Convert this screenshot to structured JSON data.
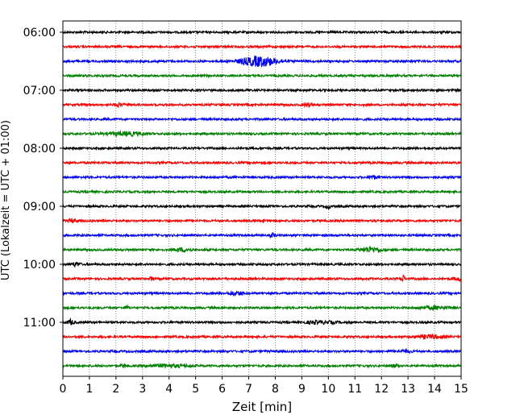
{
  "chart_data": {
    "type": "line",
    "title": "",
    "xlabel": "Zeit  [min]",
    "ylabel": "UTC (Lokalzeit = UTC + 01:00)",
    "xlim": [
      0,
      15
    ],
    "x_ticks": [
      0,
      1,
      2,
      3,
      4,
      5,
      6,
      7,
      8,
      9,
      10,
      11,
      12,
      13,
      14,
      15
    ],
    "x_tick_labels": [
      "0",
      "1",
      "2",
      "3",
      "4",
      "5",
      "6",
      "7",
      "8",
      "9",
      "10",
      "11",
      "12",
      "13",
      "14",
      "15"
    ],
    "y_tick_labels": [
      "06:00",
      "07:00",
      "08:00",
      "09:00",
      "10:00",
      "11:00"
    ],
    "x_grid": true,
    "trace_colors": [
      "#000000",
      "#ff0000",
      "#0000ff",
      "#008000"
    ],
    "traces": [
      {
        "start": "06:00",
        "color": "#000000",
        "amplitude": 1,
        "events": []
      },
      {
        "start": "06:15",
        "color": "#ff0000",
        "amplitude": 1,
        "events": []
      },
      {
        "start": "06:30",
        "color": "#0000ff",
        "amplitude": 1,
        "events": [
          {
            "t": 7.4,
            "width": 1.4,
            "amp": 6
          }
        ]
      },
      {
        "start": "06:45",
        "color": "#008000",
        "amplitude": 1,
        "events": []
      },
      {
        "start": "07:00",
        "color": "#000000",
        "amplitude": 1,
        "events": []
      },
      {
        "start": "07:15",
        "color": "#ff0000",
        "amplitude": 1,
        "events": [
          {
            "t": 2.1,
            "width": 0.3,
            "amp": 2
          },
          {
            "t": 9.2,
            "width": 0.3,
            "amp": 2
          }
        ]
      },
      {
        "start": "07:30",
        "color": "#0000ff",
        "amplitude": 1,
        "events": []
      },
      {
        "start": "07:45",
        "color": "#008000",
        "amplitude": 1,
        "events": [
          {
            "t": 2.4,
            "width": 1.4,
            "amp": 2
          }
        ]
      },
      {
        "start": "08:00",
        "color": "#000000",
        "amplitude": 1,
        "events": []
      },
      {
        "start": "08:15",
        "color": "#ff0000",
        "amplitude": 1,
        "events": []
      },
      {
        "start": "08:30",
        "color": "#0000ff",
        "amplitude": 1,
        "events": [
          {
            "t": 11.7,
            "width": 0.3,
            "amp": 2
          }
        ]
      },
      {
        "start": "08:45",
        "color": "#008000",
        "amplitude": 1,
        "events": []
      },
      {
        "start": "09:00",
        "color": "#000000",
        "amplitude": 1,
        "events": [
          {
            "t": 10.0,
            "width": 0.2,
            "amp": 2
          }
        ]
      },
      {
        "start": "09:15",
        "color": "#ff0000",
        "amplitude": 1,
        "events": [
          {
            "t": 0.4,
            "width": 0.3,
            "amp": 2
          },
          {
            "t": 7.5,
            "width": 0.1,
            "amp": 3
          }
        ]
      },
      {
        "start": "09:30",
        "color": "#0000ff",
        "amplitude": 1,
        "events": [
          {
            "t": 7.9,
            "width": 0.15,
            "amp": 3
          }
        ]
      },
      {
        "start": "09:45",
        "color": "#008000",
        "amplitude": 1,
        "events": [
          {
            "t": 4.5,
            "width": 0.6,
            "amp": 2
          },
          {
            "t": 11.6,
            "width": 0.8,
            "amp": 3
          }
        ]
      },
      {
        "start": "10:00",
        "color": "#000000",
        "amplitude": 1,
        "events": [
          {
            "t": 0.5,
            "width": 0.3,
            "amp": 2
          }
        ]
      },
      {
        "start": "10:15",
        "color": "#ff0000",
        "amplitude": 1,
        "events": [
          {
            "t": 3.3,
            "width": 0.15,
            "amp": 2
          },
          {
            "t": 12.8,
            "width": 0.12,
            "amp": 5
          },
          {
            "t": 14.9,
            "width": 0.3,
            "amp": 2
          }
        ]
      },
      {
        "start": "10:30",
        "color": "#0000ff",
        "amplitude": 1,
        "events": [
          {
            "t": 6.5,
            "width": 0.6,
            "amp": 2
          }
        ]
      },
      {
        "start": "10:45",
        "color": "#008000",
        "amplitude": 1,
        "events": [
          {
            "t": 2.4,
            "width": 0.15,
            "amp": 2
          },
          {
            "t": 14.0,
            "width": 1.0,
            "amp": 2
          }
        ]
      },
      {
        "start": "11:00",
        "color": "#000000",
        "amplitude": 1,
        "events": [
          {
            "t": 0.3,
            "width": 0.25,
            "amp": 3
          },
          {
            "t": 9.7,
            "width": 1.2,
            "amp": 1.5
          }
        ]
      },
      {
        "start": "11:15",
        "color": "#ff0000",
        "amplitude": 1,
        "events": [
          {
            "t": 13.8,
            "width": 1.0,
            "amp": 2
          }
        ]
      },
      {
        "start": "11:30",
        "color": "#0000ff",
        "amplitude": 1,
        "events": [
          {
            "t": 12.8,
            "width": 0.6,
            "amp": 1.5
          }
        ]
      },
      {
        "start": "11:45",
        "color": "#008000",
        "amplitude": 1,
        "events": [
          {
            "t": 2.3,
            "width": 0.2,
            "amp": 2
          },
          {
            "t": 4.0,
            "width": 1.5,
            "amp": 1.5
          },
          {
            "t": 12.5,
            "width": 0.3,
            "amp": 1.5
          }
        ]
      }
    ]
  }
}
